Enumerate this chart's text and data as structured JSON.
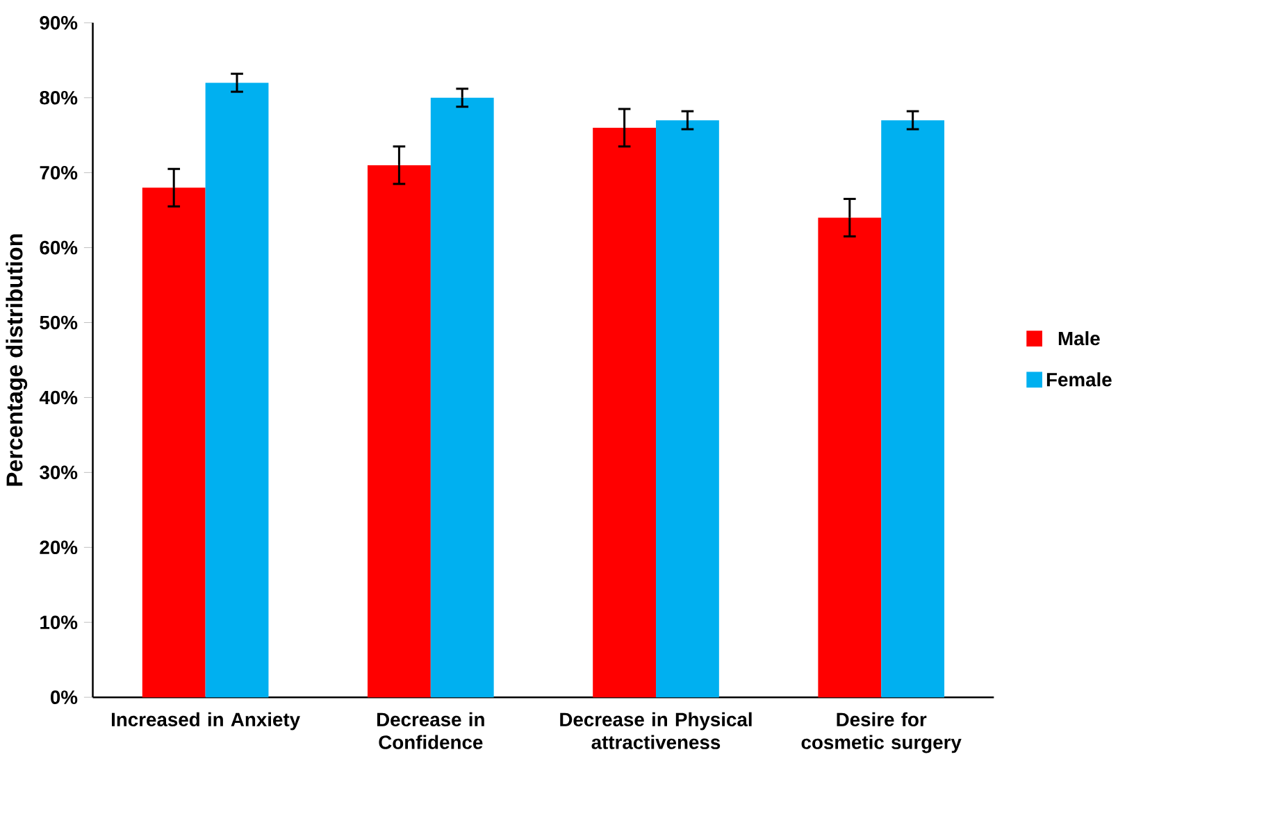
{
  "chart_data": {
    "type": "bar",
    "ylabel": "Percentage distribution",
    "categories": [
      "Increased in Anxiety",
      "Decrease in Confidence",
      "Decrease in Physical attractiveness",
      "Desire for cosmetic surgery"
    ],
    "series": [
      {
        "name": "Male",
        "color": "#ff0000",
        "values": [
          68,
          71,
          76,
          64
        ],
        "errors": [
          2.5,
          2.5,
          2.5,
          2.5
        ]
      },
      {
        "name": "Female",
        "color": "#00b0f0",
        "values": [
          82,
          80,
          77,
          77
        ],
        "errors": [
          1.2,
          1.2,
          1.2,
          1.2
        ]
      }
    ],
    "ylim": [
      0,
      90
    ],
    "yticks": [
      {
        "value": 0,
        "label": "0%"
      },
      {
        "value": 10,
        "label": "10%"
      },
      {
        "value": 20,
        "label": "20%"
      },
      {
        "value": 30,
        "label": "30%"
      },
      {
        "value": 40,
        "label": "40%"
      },
      {
        "value": 50,
        "label": "50%"
      },
      {
        "value": 60,
        "label": "60%"
      },
      {
        "value": 70,
        "label": "70%"
      },
      {
        "value": 80,
        "label": "80%"
      },
      {
        "value": 90,
        "label": "90%"
      }
    ],
    "grid": false,
    "legend": "right"
  }
}
